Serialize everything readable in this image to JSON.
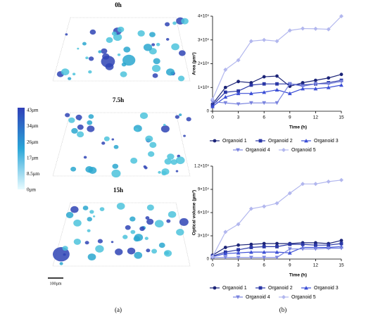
{
  "figure": {
    "time_labels": [
      "0h",
      "7.5h",
      "15h"
    ],
    "colorbar_labels": [
      "43µm",
      "34µm",
      "26µm",
      "17µm",
      "8.5µm",
      "0µm"
    ],
    "scale_bar": "100µm",
    "caption_a": "(a)",
    "caption_b": "(b)"
  },
  "chart_data": [
    {
      "type": "line",
      "y_label": "Area (µm²)",
      "x_label": "Time (h)",
      "x": [
        0,
        1.5,
        3,
        4.5,
        6,
        7.5,
        9,
        10.5,
        12,
        13.5,
        15
      ],
      "xlim": [
        0,
        15
      ],
      "xticks": [
        0,
        3,
        6,
        9,
        12,
        15
      ],
      "ylim": [
        0,
        400000
      ],
      "yticks": [
        0,
        {
          "value": 100000,
          "label": "1×10⁵"
        },
        {
          "value": 200000,
          "label": "2×10⁵"
        },
        {
          "value": 300000,
          "label": "3×10⁵"
        },
        {
          "value": 400000,
          "label": "4×10⁵"
        }
      ],
      "series": [
        {
          "name": "Organoid 1",
          "color": "#1c2478",
          "values": [
            30000,
            100000,
            125000,
            120000,
            145000,
            148000,
            105000,
            120000,
            130000,
            140000,
            155000
          ]
        },
        {
          "name": "Organoid 2",
          "color": "#2a37a6",
          "values": [
            25000,
            80000,
            85000,
            110000,
            115000,
            115000,
            115000,
            110000,
            115000,
            120000,
            130000
          ]
        },
        {
          "name": "Organoid 3",
          "color": "#3c4fd6",
          "values": [
            20000,
            60000,
            75000,
            75000,
            80000,
            90000,
            75000,
            95000,
            95000,
            100000,
            110000
          ]
        },
        {
          "name": "Organoid 4",
          "color": "#7a84df",
          "values": [
            40000,
            35000,
            30000,
            35000,
            35000,
            35000,
            115000,
            105000,
            115000,
            115000,
            125000
          ]
        },
        {
          "name": "Organoid 5",
          "color": "#b2b7ee",
          "values": [
            50000,
            175000,
            215000,
            295000,
            300000,
            295000,
            340000,
            348000,
            347000,
            345000,
            400000
          ]
        }
      ]
    },
    {
      "type": "line",
      "y_label": "Optical volume (µm³)",
      "x_label": "Time (h)",
      "x": [
        0,
        1.5,
        3,
        4.5,
        6,
        7.5,
        9,
        10.5,
        12,
        13.5,
        15
      ],
      "xlim": [
        0,
        15
      ],
      "xticks": [
        0,
        3,
        6,
        9,
        12,
        15
      ],
      "ylim": [
        0,
        120000
      ],
      "yticks": [
        0,
        {
          "value": 30000,
          "label": "3×10⁴"
        },
        {
          "value": 60000,
          "label": "6×10⁴"
        },
        {
          "value": 90000,
          "label": "9×10⁴"
        },
        {
          "value": 120000,
          "label": "1.2×10⁵"
        }
      ],
      "series": [
        {
          "name": "Organoid 1",
          "color": "#1c2478",
          "values": [
            5000,
            15000,
            18000,
            19000,
            20000,
            20000,
            20000,
            21000,
            21000,
            20000,
            24000
          ]
        },
        {
          "name": "Organoid 2",
          "color": "#2a37a6",
          "values": [
            4000,
            9000,
            12000,
            15000,
            16000,
            16000,
            19000,
            19000,
            18000,
            18000,
            20000
          ]
        },
        {
          "name": "Organoid 3",
          "color": "#3c4fd6",
          "values": [
            3000,
            7000,
            8000,
            9000,
            9000,
            9000,
            8000,
            15000,
            15000,
            15000,
            16000
          ]
        },
        {
          "name": "Organoid 4",
          "color": "#7a84df",
          "values": [
            2000,
            2000,
            2000,
            2000,
            2000,
            2000,
            13000,
            13000,
            13000,
            14000,
            14000
          ]
        },
        {
          "name": "Organoid 5",
          "color": "#b2b7ee",
          "values": [
            3000,
            35000,
            45000,
            65000,
            68000,
            72000,
            85000,
            97000,
            97000,
            100000,
            102000
          ]
        }
      ]
    }
  ]
}
